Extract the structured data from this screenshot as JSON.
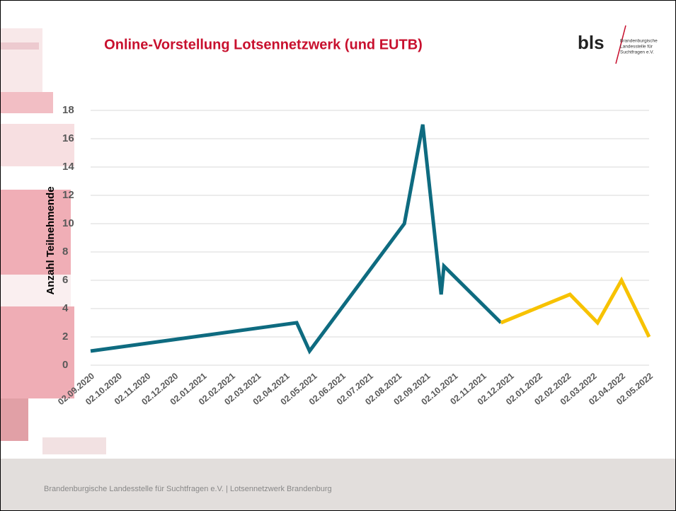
{
  "slide": {
    "logo": "bls",
    "logo_subtitle": [
      "Brandenburgische",
      "Landesstelle für",
      "Suchtfragen e.V."
    ],
    "footer": "Brandenburgische Landesstelle für Suchtfragen e.V. | Lotsennetzwerk Brandenburg"
  },
  "chart_data": {
    "type": "line",
    "title": "Online-Vorstellung Lotsennetzwerk (und EUTB)",
    "y_label": "Anzahl Teilnehmende",
    "x": [
      "02.09.2020",
      "14.04.2021",
      "28.04.2021",
      "09.08.2021",
      "29.08.2021",
      "18.09.2021",
      "21.09.2021",
      "22.11.2021",
      "05.02.2022",
      "07.03.2022",
      "02.04.2022",
      "02.05.2022"
    ],
    "series": [
      {
        "color": "#0e6b80",
        "values": [
          1,
          3,
          1,
          10,
          17,
          5,
          7,
          3,
          null,
          null,
          null,
          null
        ]
      },
      {
        "color": "#f7c200",
        "values": [
          null,
          null,
          null,
          null,
          null,
          null,
          null,
          3,
          5,
          3,
          6,
          2
        ]
      }
    ],
    "xlim": [
      "02.09.2020",
      "02.05.2022"
    ],
    "xticks": [
      "02.09.2020",
      "02.10.2020",
      "02.11.2020",
      "02.12.2020",
      "02.01.2021",
      "02.02.2021",
      "02.03.2021",
      "02.04.2021",
      "02.05.2021",
      "02.06.2021",
      "02.07.2021",
      "02.08.2021",
      "02.09.2021",
      "02.10.2021",
      "02.11.2021",
      "02.12.2021",
      "02.01.2022",
      "02.02.2022",
      "02.03.2022",
      "02.04.2022",
      "02.05.2022"
    ],
    "ylim": [
      0,
      18
    ],
    "yticks": [
      0,
      2,
      4,
      6,
      8,
      10,
      12,
      14,
      16,
      18
    ],
    "grid": true
  }
}
